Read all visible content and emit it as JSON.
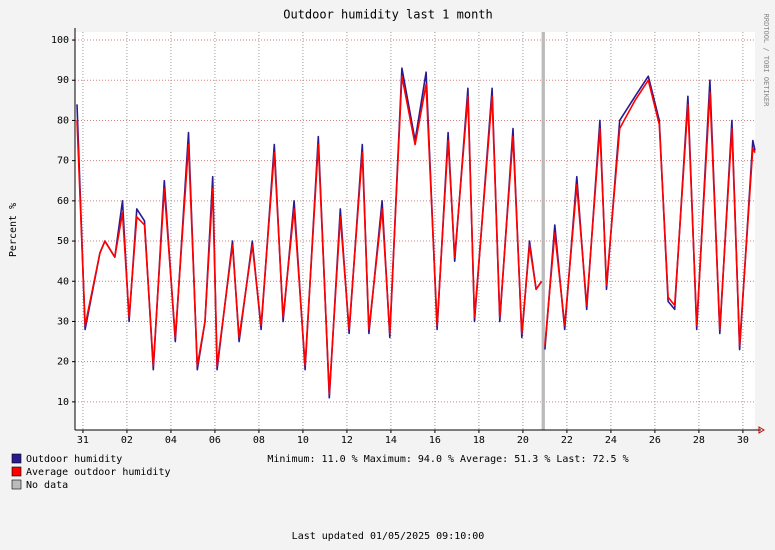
{
  "chart_data": {
    "type": "line",
    "title": "Outdoor humidity last 1 month",
    "y_label": "Percent  %",
    "side_text": "RRDTOOL / TOBI OETIKER",
    "stats": "Minimum: 11.0 %  Maximum: 94.0 %  Average: 51.3 %  Last: 72.5 %",
    "footer": "Last updated 01/05/2025 09:10:00",
    "no_data_label": "No data",
    "no_data_color": "#bbbbbb",
    "no_data": [
      [
        20.85,
        21.0
      ]
    ],
    "x": [
      -0.27,
      0.1,
      0.77,
      1.0,
      1.45,
      1.8,
      2.1,
      2.45,
      2.8,
      3.2,
      3.7,
      4.2,
      4.8,
      5.2,
      5.55,
      5.9,
      6.1,
      6.8,
      7.1,
      7.7,
      8.1,
      8.7,
      9.1,
      9.6,
      10.1,
      10.7,
      11.2,
      11.7,
      12.1,
      12.7,
      13.0,
      13.6,
      13.95,
      14.5,
      15.1,
      15.6,
      16.1,
      16.6,
      16.9,
      17.5,
      17.8,
      18.6,
      18.95,
      19.55,
      19.95,
      20.3,
      20.6,
      20.85,
      20.92,
      21.0,
      21.45,
      21.9,
      22.45,
      22.9,
      23.5,
      23.8,
      24.4,
      25.1,
      25.7,
      26.2,
      26.6,
      26.9,
      27.5,
      27.9,
      28.5,
      28.95,
      29.5,
      29.85,
      30.45,
      30.55
    ],
    "series": [
      {
        "name": "Outdoor humidity",
        "color": "#2a1a90",
        "values": [
          84,
          28,
          47,
          50,
          46,
          60,
          30,
          58,
          55,
          18,
          65,
          25,
          77,
          18,
          30,
          66,
          18,
          50,
          25,
          50,
          28,
          74,
          30,
          60,
          18,
          76,
          11,
          58,
          27,
          74,
          27,
          60,
          26,
          93,
          75,
          92,
          28,
          77,
          45,
          88,
          30,
          88,
          30,
          78,
          26,
          50,
          38,
          40,
          null,
          23,
          54,
          28,
          66,
          33,
          80,
          38,
          80,
          86,
          91,
          80,
          35,
          33,
          86,
          28,
          90,
          27,
          80,
          23,
          75,
          72.5
        ]
      },
      {
        "name": "Average outdoor humidity",
        "color": "#ff0000",
        "values": [
          80,
          29,
          47,
          50,
          46,
          57,
          31,
          56,
          54,
          19,
          63,
          26,
          74,
          19,
          30,
          63,
          19,
          49,
          26,
          49,
          29,
          72,
          31,
          58,
          19,
          74,
          12,
          56,
          28,
          72,
          28,
          58,
          27,
          91,
          74,
          89,
          29,
          75,
          46,
          86,
          31,
          86,
          31,
          76,
          27,
          49,
          38,
          40,
          null,
          24,
          52,
          29,
          64,
          34,
          78,
          39,
          78,
          85,
          90,
          79,
          36,
          34,
          84,
          29,
          87,
          28,
          78,
          24,
          73,
          72
        ]
      }
    ],
    "xlim": [
      -0.36,
      30.55
    ],
    "xticks": [
      {
        "value": 0,
        "label": "31"
      },
      {
        "value": 2,
        "label": "02"
      },
      {
        "value": 4,
        "label": "04"
      },
      {
        "value": 6,
        "label": "06"
      },
      {
        "value": 8,
        "label": "08"
      },
      {
        "value": 10,
        "label": "10"
      },
      {
        "value": 12,
        "label": "12"
      },
      {
        "value": 14,
        "label": "14"
      },
      {
        "value": 16,
        "label": "16"
      },
      {
        "value": 18,
        "label": "18"
      },
      {
        "value": 20,
        "label": "20"
      },
      {
        "value": 22,
        "label": "22"
      },
      {
        "value": 24,
        "label": "24"
      },
      {
        "value": 26,
        "label": "26"
      },
      {
        "value": 28,
        "label": "28"
      },
      {
        "value": 30,
        "label": "30"
      }
    ],
    "ylim": [
      3,
      102
    ],
    "yticks": [
      10,
      20,
      30,
      40,
      50,
      60,
      70,
      80,
      90,
      100
    ],
    "grid": true
  }
}
